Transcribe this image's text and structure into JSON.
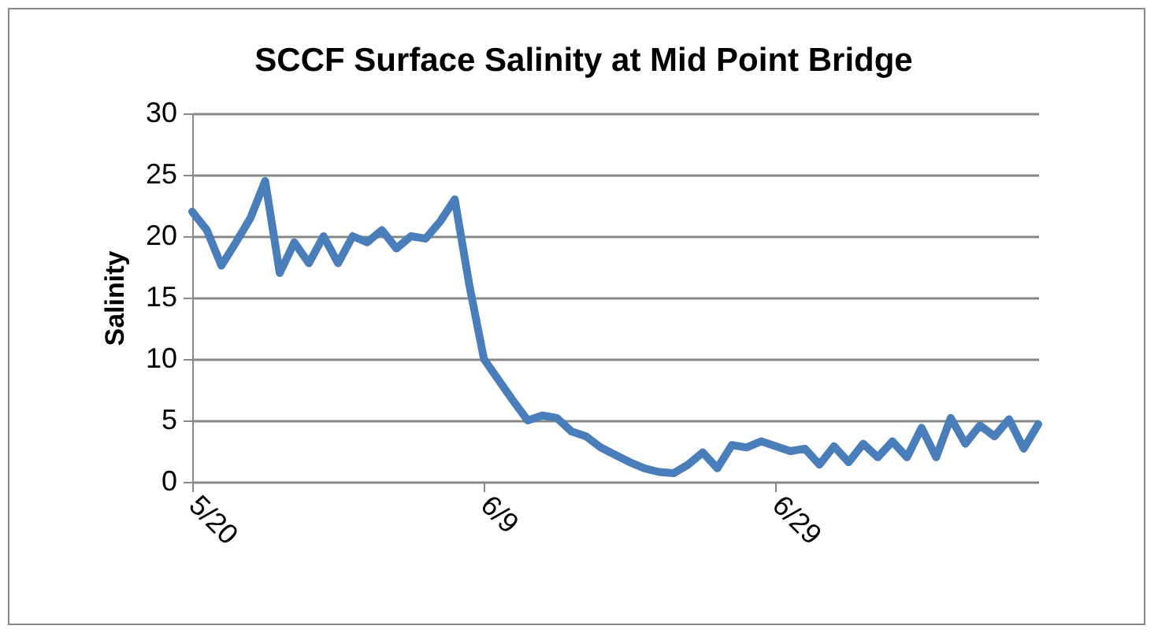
{
  "chart_data": {
    "type": "line",
    "title": "SCCF Surface Salinity at Mid Point Bridge",
    "ylabel": "Salinity",
    "x": [
      "--05-20",
      "--05-21",
      "--05-22",
      "--05-23",
      "--05-24",
      "--05-25",
      "--05-26",
      "--05-27",
      "--05-28",
      "--05-29",
      "--05-30",
      "--05-31",
      "--06-01",
      "--06-02",
      "--06-03",
      "--06-04",
      "--06-05",
      "--06-06",
      "--06-07",
      "--06-08",
      "--06-09",
      "--06-10",
      "--06-11",
      "--06-12",
      "--06-13",
      "--06-14",
      "--06-15",
      "--06-16",
      "--06-17",
      "--06-18",
      "--06-19",
      "--06-20",
      "--06-21",
      "--06-22",
      "--06-23",
      "--06-24",
      "--06-25",
      "--06-26",
      "--06-27",
      "--06-28",
      "--06-29",
      "--06-30",
      "--07-01",
      "--07-02",
      "--07-03",
      "--07-04",
      "--07-05",
      "--07-06",
      "--07-07",
      "--07-08",
      "--07-09",
      "--07-10",
      "--07-11",
      "--07-12",
      "--07-13",
      "--07-14",
      "--07-15",
      "--07-16",
      "--07-17"
    ],
    "series": [
      {
        "color": "#4a7ebb",
        "values": [
          22,
          20.5,
          17.6,
          19.5,
          21.5,
          24.5,
          17,
          19.5,
          17.8,
          20,
          17.8,
          20,
          19.5,
          20.5,
          19,
          20,
          19.8,
          21.2,
          23,
          16,
          10,
          8.3,
          6.6,
          5,
          5.4,
          5.2,
          4.1,
          3.7,
          2.8,
          2.2,
          1.6,
          1.1,
          0.8,
          0.7,
          1.4,
          2.4,
          1.1,
          3,
          2.8,
          3.3,
          2.9,
          2.5,
          2.7,
          1.4,
          2.9,
          1.6,
          3.1,
          2,
          3.3,
          2,
          4.4,
          2,
          5.2,
          3.1,
          4.6,
          3.7,
          5.1,
          2.7,
          4.7
        ]
      }
    ],
    "xlim": [
      "--05-20",
      "--07-17"
    ],
    "xticks": [
      {
        "value": "--05-20",
        "label": "5/20"
      },
      {
        "value": "--06-09",
        "label": "6/9"
      },
      {
        "value": "--06-29",
        "label": "6/29"
      }
    ],
    "ylim": [
      0,
      30
    ],
    "yticks": [
      0,
      5,
      10,
      15,
      20,
      25,
      30
    ],
    "grid": "y",
    "marker": "none",
    "line_style": "solid"
  }
}
